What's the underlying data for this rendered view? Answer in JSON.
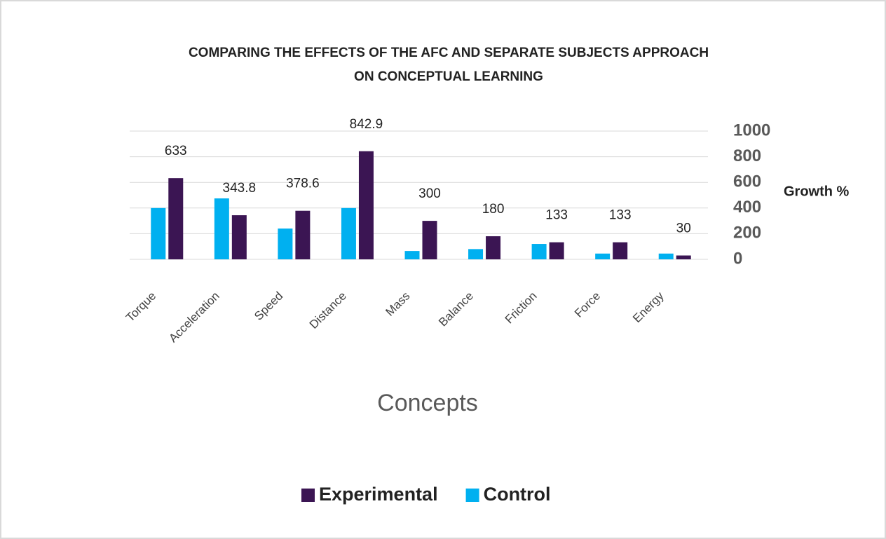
{
  "chart_data": {
    "type": "bar",
    "title": "COMPARING THE EFFECTS OF THE AFC AND SEPARATE SUBJECTS APPROACH",
    "subtitle": "ON CONCEPTUAL LEARNING",
    "x_label": "Concepts",
    "y_label": "Growth %",
    "categories": [
      "Torque",
      "Acceleration",
      "Speed",
      "Distance",
      "Mass",
      "Balance",
      "Friction",
      "Force",
      "Energy"
    ],
    "series": [
      {
        "name": "Control",
        "color": "#00b0f0",
        "data_labels": false,
        "values": [
          400,
          475,
          240,
          400,
          65,
          80,
          120,
          45,
          45
        ]
      },
      {
        "name": "Experimental",
        "color": "#3b1553",
        "data_labels": true,
        "values": [
          633,
          343.8,
          378.6,
          842.9,
          300,
          180,
          133,
          133,
          30
        ]
      }
    ],
    "ylim": [
      0,
      1000
    ],
    "yticks": [
      0,
      200,
      400,
      600,
      800,
      1000
    ],
    "grid": true,
    "y_axis_side": "right",
    "legend": "bottom"
  }
}
